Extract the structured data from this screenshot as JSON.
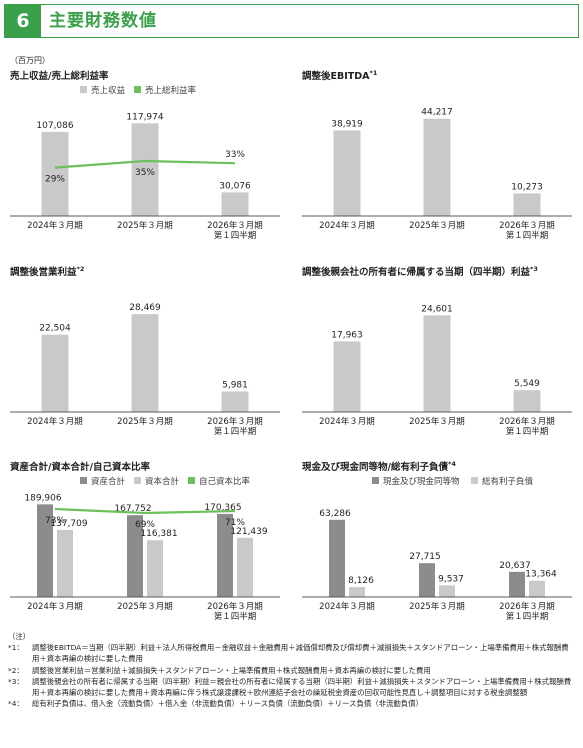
{
  "header": {
    "number": "6",
    "title": "主要財務数値"
  },
  "unit": "（百万円）",
  "colors": {
    "accent": "#3aa14a",
    "bar_light": "#c9c9c9",
    "bar_dark": "#8c8c8c",
    "line": "#6cc15a",
    "axis": "#595959"
  },
  "chart_data": [
    {
      "type": "bar",
      "title": "売上収益/売上総利益率",
      "title_sup": "",
      "categories": [
        "2024年３月期",
        "2025年３月期",
        "2026年３月期|第１四半期"
      ],
      "series": [
        {
          "name": "売上収益",
          "kind": "bar",
          "color": "#c9c9c9",
          "values": [
            107086,
            117974,
            30076
          ],
          "labels": [
            "107,086",
            "117,974",
            "30,076"
          ]
        },
        {
          "name": "売上総利益率",
          "kind": "line",
          "color": "#6cc15a",
          "values": [
            29,
            35,
            33
          ],
          "labels": [
            "29%",
            "35%",
            "33%"
          ]
        }
      ],
      "ylim": [
        0,
        140000
      ],
      "legend": "top"
    },
    {
      "type": "bar",
      "title": "調整後EBITDA",
      "title_sup": "*1",
      "categories": [
        "2024年３月期",
        "2025年３月期",
        "2026年３月期|第１四半期"
      ],
      "series": [
        {
          "name": "",
          "kind": "bar",
          "color": "#c9c9c9",
          "values": [
            38919,
            44217,
            10273
          ],
          "labels": [
            "38,919",
            "44,217",
            "10,273"
          ]
        }
      ],
      "ylim": [
        0,
        50000
      ],
      "legend": "none"
    },
    {
      "type": "bar",
      "title": "調整後営業利益",
      "title_sup": "*2",
      "categories": [
        "2024年３月期",
        "2025年３月期",
        "2026年３月期|第１四半期"
      ],
      "series": [
        {
          "name": "",
          "kind": "bar",
          "color": "#c9c9c9",
          "values": [
            22504,
            28469,
            5981
          ],
          "labels": [
            "22,504",
            "28,469",
            "5,981"
          ]
        }
      ],
      "ylim": [
        0,
        32000
      ],
      "legend": "none"
    },
    {
      "type": "bar",
      "title": "調整後親会社の所有者に帰属する当期（四半期）利益",
      "title_sup": "*3",
      "categories": [
        "2024年３月期",
        "2025年３月期",
        "2026年３月期|第１四半期"
      ],
      "series": [
        {
          "name": "",
          "kind": "bar",
          "color": "#c9c9c9",
          "values": [
            17963,
            24601,
            5549
          ],
          "labels": [
            "17,963",
            "24,601",
            "5,549"
          ]
        }
      ],
      "ylim": [
        0,
        28000
      ],
      "legend": "none"
    },
    {
      "type": "bar",
      "title": "資産合計/資本合計/自己資本比率",
      "title_sup": "",
      "categories": [
        "2024年３月期",
        "2025年３月期",
        "2026年３月期|第１四半期"
      ],
      "series": [
        {
          "name": "資産合計",
          "kind": "bar",
          "color": "#8c8c8c",
          "values": [
            189906,
            167752,
            170365
          ],
          "labels": [
            "189,906",
            "167,752",
            "170,365"
          ]
        },
        {
          "name": "資本合計",
          "kind": "bar",
          "color": "#c9c9c9",
          "values": [
            137709,
            116381,
            121439
          ],
          "labels": [
            "137,709",
            "116,381",
            "121,439"
          ]
        },
        {
          "name": "自己資本比率",
          "kind": "line",
          "color": "#6cc15a",
          "values": [
            73,
            69,
            71
          ],
          "labels": [
            "73%",
            "69%",
            "71%"
          ]
        }
      ],
      "ylim": [
        0,
        205000
      ],
      "legend": "top"
    },
    {
      "type": "bar",
      "title": "現金及び現金同等物/総有利子負債",
      "title_sup": "*4",
      "categories": [
        "2024年３月期",
        "2025年３月期",
        "2026年３月期|第１四半期"
      ],
      "series": [
        {
          "name": "現金及び現金同等物",
          "kind": "bar",
          "color": "#8c8c8c",
          "values": [
            63286,
            27715,
            20637
          ],
          "labels": [
            "63,286",
            "27,715",
            "20,637"
          ]
        },
        {
          "name": "総有利子負債",
          "kind": "bar",
          "color": "#c9c9c9",
          "values": [
            8126,
            9537,
            13364
          ],
          "labels": [
            "8,126",
            "9,537",
            "13,364"
          ]
        }
      ],
      "ylim": [
        0,
        82000
      ],
      "legend": "top"
    }
  ],
  "notes": {
    "heading": "（注）",
    "items": [
      {
        "key": "*1：",
        "text": "調整後EBITDA＝当期（四半期）利益＋法人所得税費用－金融収益＋金融費用＋減価償却費及び償却費＋減損損失＋スタンドアローン・上場準備費用＋株式報酬費用＋資本再編の検討に要した費用"
      },
      {
        "key": "*2：",
        "text": "調整後営業利益＝営業利益＋減損損失＋スタンドアローン・上場準備費用＋株式報酬費用＋資本再編の検討に要した費用"
      },
      {
        "key": "*3：",
        "text": "調整後親会社の所有者に帰属する当期（四半期）利益＝親会社の所有者に帰属する当期（四半期）利益＋減損損失＋スタンドアローン・上場準備費用＋株式報酬費用＋資本再編の検討に要した費用＋資本再編に伴う株式譲渡課税＋欧州連結子会社の繰延税金資産の回収可能性見直し＋調整項目に対する税金調整額"
      },
      {
        "key": "*4：",
        "text": "総有利子負債は、借入金（流動負債）＋借入金（非流動負債）＋リース負債（流動負債）＋リース負債（非流動負債）"
      }
    ]
  }
}
